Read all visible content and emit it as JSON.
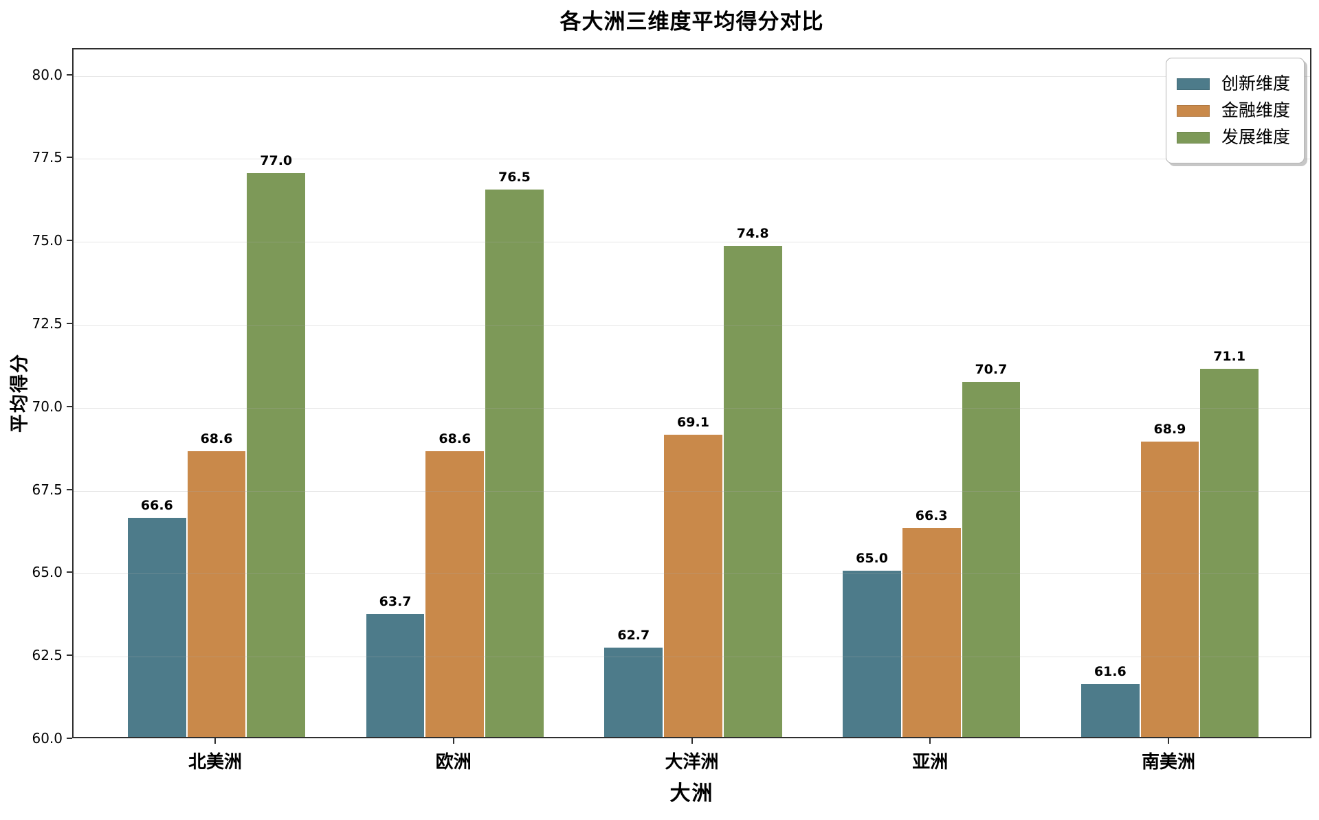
{
  "chart_data": {
    "type": "bar",
    "title": "各大洲三维度平均得分对比",
    "xlabel": "大洲",
    "ylabel": "平均得分",
    "categories": [
      "北美洲",
      "欧洲",
      "大洋洲",
      "亚洲",
      "南美洲"
    ],
    "series": [
      {
        "name": "创新维度",
        "color": "#4d7b8a",
        "values": [
          66.6,
          63.7,
          62.7,
          65.0,
          61.6
        ]
      },
      {
        "name": "金融维度",
        "color": "#c9894a",
        "values": [
          68.6,
          68.6,
          69.1,
          66.3,
          68.9
        ]
      },
      {
        "name": "发展维度",
        "color": "#7d9958",
        "values": [
          77.0,
          76.5,
          74.8,
          70.7,
          71.1
        ]
      }
    ],
    "value_label_format": "one-decimal",
    "ylim": [
      60.0,
      80.8
    ],
    "yticks": [
      60.0,
      62.5,
      65.0,
      67.5,
      70.0,
      72.5,
      75.0,
      77.5,
      80.0
    ],
    "ytick_labels": [
      "60.0",
      "62.5",
      "65.0",
      "67.5",
      "70.0",
      "72.5",
      "75.0",
      "77.5",
      "80.0"
    ],
    "bar_width_units": 0.25,
    "x_edge_margin_units": 0.6,
    "grid": "horizontal",
    "legend_position": "upper-right",
    "colors": {
      "spine": "#2e2e2e",
      "grid": "#e6e6e6",
      "background": "#ffffff",
      "text": "#000000"
    }
  }
}
